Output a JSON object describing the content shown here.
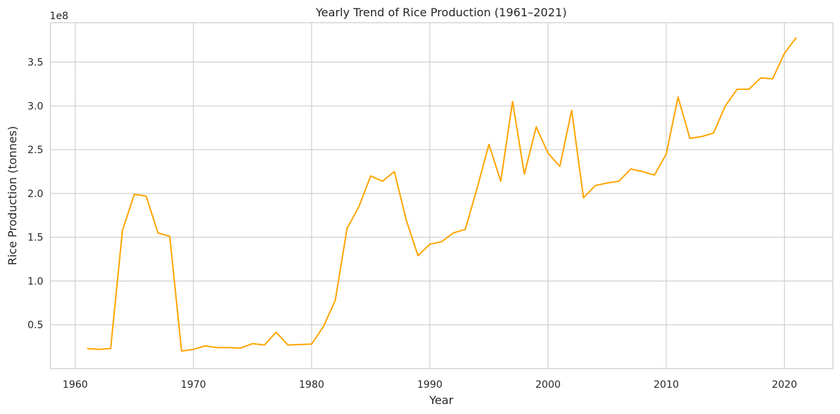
{
  "chart_data": {
    "type": "line",
    "title": "Yearly Trend of Rice Production (1961–2021)",
    "xlabel": "Year",
    "ylabel": "Rice Production (tonnes)",
    "y_offset_label": "1e8",
    "y_scale": 100000000,
    "xlim": [
      1957.9,
      1964.1
    ],
    "ylim": [
      0.0,
      3.95
    ],
    "x_ticks": [
      1960,
      1970,
      1980,
      1990,
      2000,
      2010,
      2020
    ],
    "x_tick_labels": [
      "1960",
      "1970",
      "1980",
      "1990",
      "2000",
      "2010",
      "2020"
    ],
    "y_ticks": [
      0.5,
      1.0,
      1.5,
      2.0,
      2.5,
      3.0,
      3.5
    ],
    "y_tick_labels": [
      "0.5",
      "1.0",
      "1.5",
      "2.0",
      "2.5",
      "3.0",
      "3.5"
    ],
    "grid": true,
    "line_color": "#ffa500",
    "series": [
      {
        "x": [
          1961,
          1962,
          1963,
          1964,
          1965,
          1966,
          1967,
          1968,
          1969,
          1970,
          1971,
          1972,
          1973,
          1974,
          1975,
          1976,
          1977,
          1978,
          1979,
          1980,
          1981,
          1982,
          1983,
          1984,
          1985,
          1986,
          1987,
          1988,
          1989,
          1990,
          1991,
          1992,
          1993,
          1994,
          1995,
          1996,
          1997,
          1998,
          1999,
          2000,
          2001,
          2002,
          2003,
          2004,
          2005,
          2006,
          2007,
          2008,
          2009,
          2010,
          2011,
          2012,
          2013,
          2014,
          2015,
          2016,
          2017,
          2018,
          2019,
          2020,
          2021
        ],
        "values": [
          0.23,
          0.22,
          0.23,
          1.58,
          1.99,
          1.97,
          1.55,
          1.51,
          0.2,
          0.22,
          0.26,
          0.24,
          0.24,
          0.235,
          0.285,
          0.27,
          0.415,
          0.27,
          0.275,
          0.28,
          0.48,
          0.78,
          1.6,
          1.85,
          2.2,
          2.14,
          2.25,
          1.7,
          1.29,
          1.42,
          1.45,
          1.55,
          1.59,
          2.06,
          2.56,
          2.14,
          3.05,
          2.22,
          2.76,
          2.46,
          2.31,
          2.95,
          1.95,
          2.09,
          2.12,
          2.14,
          2.28,
          2.25,
          2.21,
          2.45,
          3.1,
          2.63,
          2.65,
          2.69,
          3.0,
          3.19,
          3.19,
          3.32,
          3.31,
          3.6,
          3.78
        ]
      }
    ]
  }
}
